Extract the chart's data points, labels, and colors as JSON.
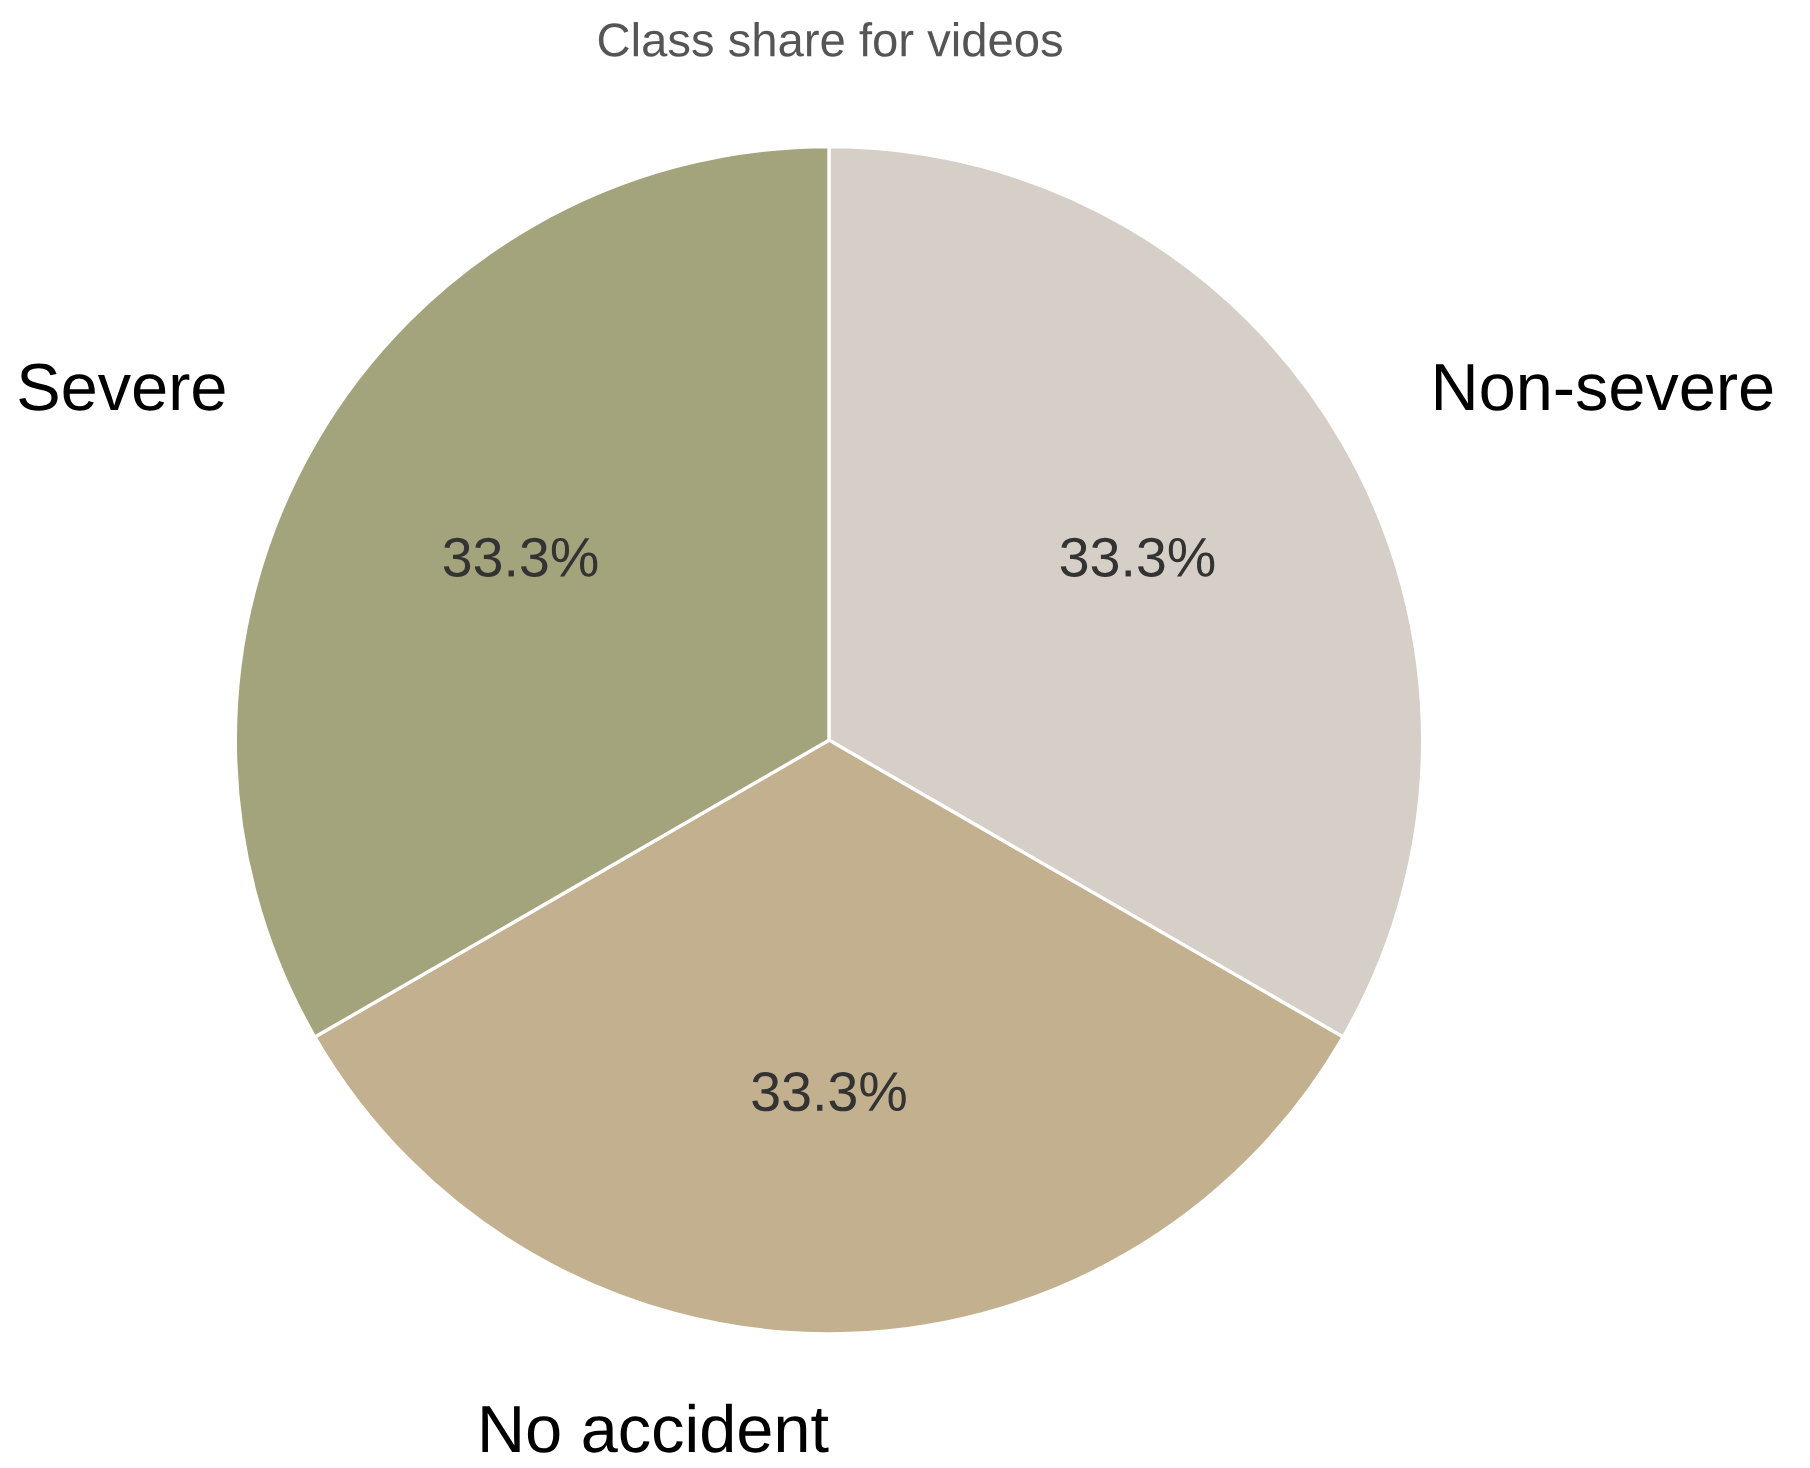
{
  "chart_data": {
    "type": "pie",
    "title": "Class share for videos",
    "categories": [
      "Non-severe",
      "No accident",
      "Severe"
    ],
    "values": [
      33.3,
      33.3,
      33.3
    ],
    "colors": [
      "#d6cfc7",
      "#c3b08f",
      "#a3a37c"
    ],
    "value_labels": [
      "33.3%",
      "33.3%",
      "33.3%"
    ],
    "legend": false
  }
}
